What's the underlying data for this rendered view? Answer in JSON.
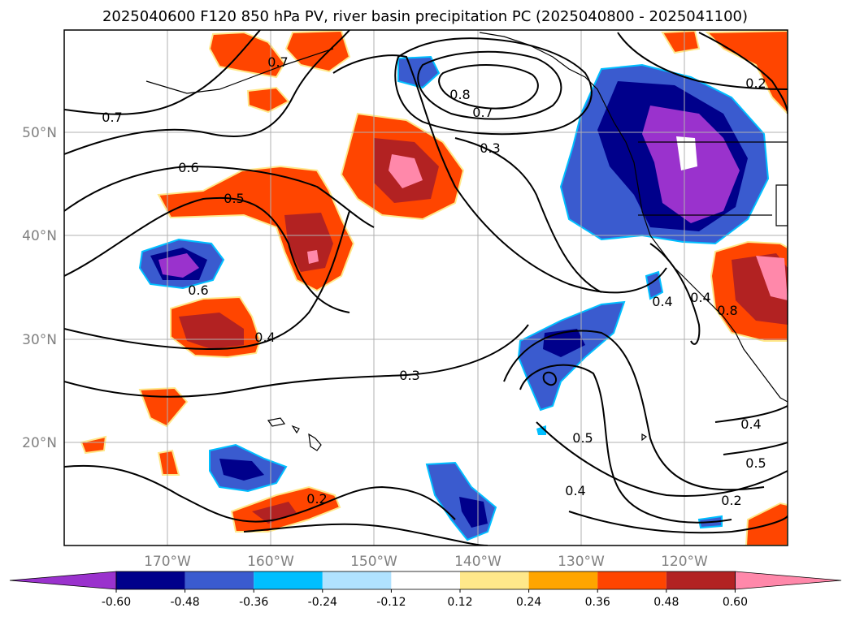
{
  "title": "2025040600 F120 850 hPa PV, river basin precipitation PC (2025040800 - 2025041100)",
  "map": {
    "lat_labels": [
      "50°N",
      "40°N",
      "30°N",
      "20°N"
    ],
    "lon_labels": [
      "170°W",
      "160°W",
      "150°W",
      "140°W",
      "130°W",
      "120°W"
    ],
    "contour_labels": [
      "0.7",
      "0.7",
      "0.6",
      "0.5",
      "0.6",
      "0.4",
      "0.3",
      "0.8",
      "0.7",
      "0.3",
      "0.2",
      "0.4",
      "0.5",
      "0.4",
      "0.2",
      "0.4",
      "0.5",
      "0.2",
      "0.4",
      "0.8"
    ]
  },
  "colorbar": {
    "ticks": [
      "-0.60",
      "-0.48",
      "-0.36",
      "-0.24",
      "-0.12",
      "0.12",
      "0.24",
      "0.36",
      "0.48",
      "0.60"
    ],
    "colors": [
      "#9a32cd",
      "#00008b",
      "#3a5bcf",
      "#00bfff",
      "#b0e2ff",
      "#ffffff",
      "#ffe88a",
      "#ffa500",
      "#ff4500",
      "#b22222",
      "#ff88aa"
    ]
  }
}
